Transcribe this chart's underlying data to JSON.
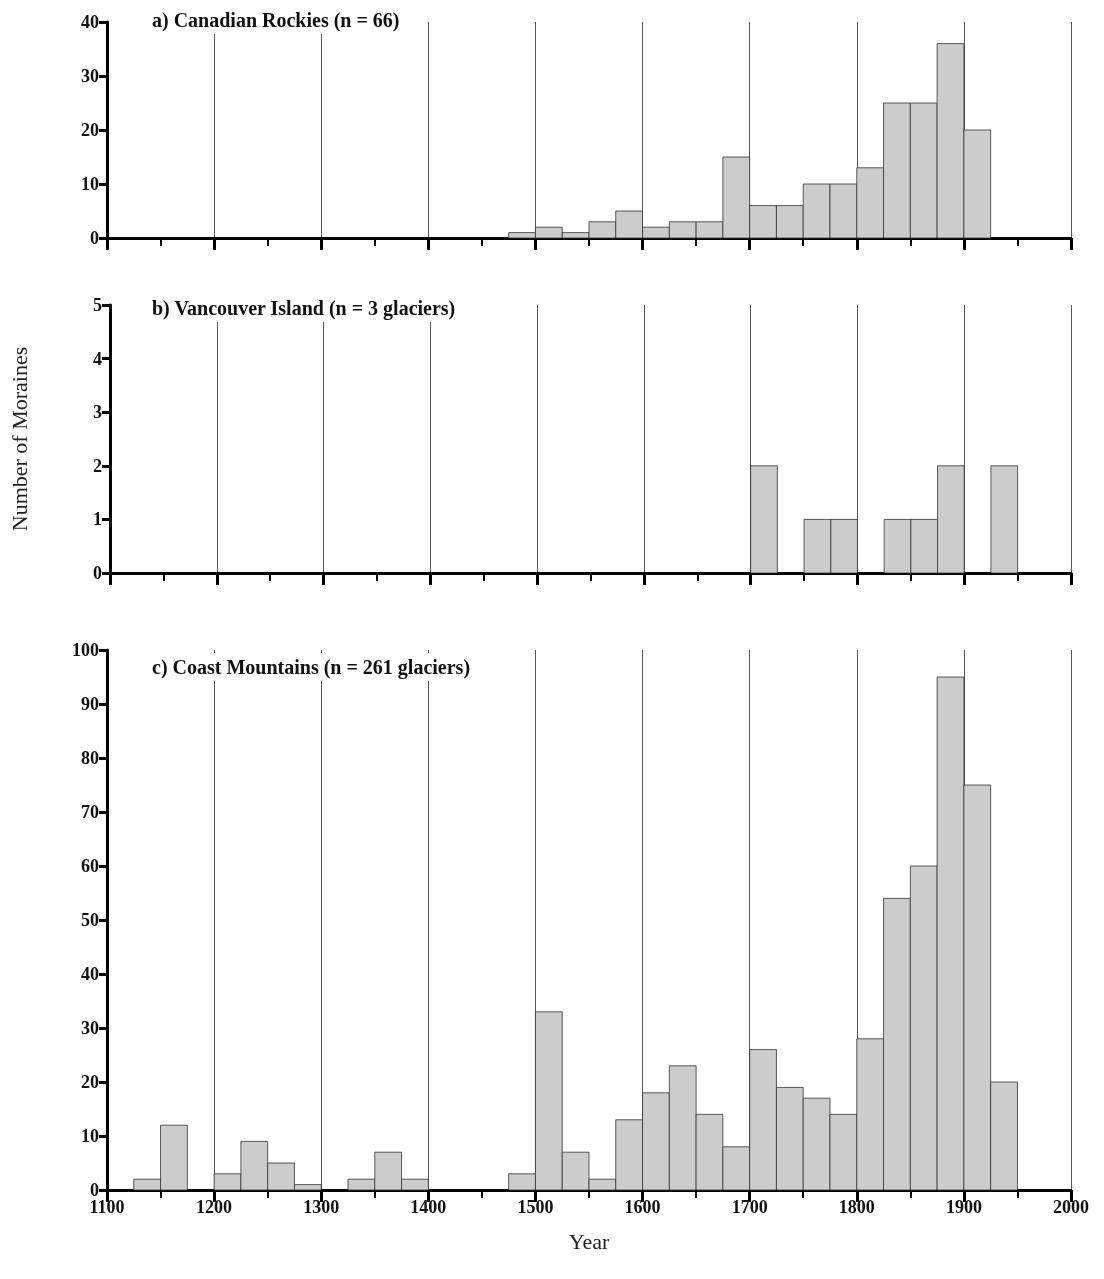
{
  "chart_data": [
    {
      "type": "histogram",
      "title": "a) Canadian Rockies (n = 66)",
      "bins": [
        1475,
        1500,
        1525,
        1550,
        1575,
        1600,
        1625,
        1650,
        1675,
        1700,
        1725,
        1750,
        1775,
        1800,
        1825,
        1850,
        1875,
        1900,
        1925
      ],
      "values": [
        1,
        2,
        1,
        3,
        5,
        2,
        3,
        3,
        15,
        6,
        6,
        10,
        10,
        13,
        25,
        25,
        36,
        20
      ],
      "color": "#cccccc",
      "xlim": [
        1100,
        2000
      ],
      "xticks": [
        1100,
        1200,
        1300,
        1400,
        1500,
        1600,
        1700,
        1800,
        1900,
        2000
      ],
      "ylim": [
        0,
        40
      ],
      "yticks": [
        0,
        10,
        20,
        30,
        40
      ],
      "grid": "x",
      "tick_labels": "y"
    },
    {
      "type": "histogram",
      "title": "b) Vancouver Island (n = 3 glaciers)",
      "ylabel": "Number of Moraines",
      "bins": [
        1700,
        1725,
        1750,
        1775,
        1800,
        1825,
        1850,
        1875,
        1900,
        1925,
        1950
      ],
      "values": [
        2,
        0,
        1,
        1,
        0,
        1,
        1,
        2,
        0,
        2
      ],
      "color": "#cccccc",
      "xlim": [
        1100,
        2000
      ],
      "xticks": [
        1100,
        1200,
        1300,
        1400,
        1500,
        1600,
        1700,
        1800,
        1900,
        2000
      ],
      "ylim": [
        0,
        5
      ],
      "yticks": [
        0,
        1,
        2,
        3,
        4,
        5
      ],
      "grid": "x",
      "tick_labels": "y"
    },
    {
      "type": "histogram",
      "title": "c) Coast Mountains (n = 261 glaciers)",
      "xlabel": "Year",
      "bins": [
        1125,
        1150,
        1175,
        1200,
        1225,
        1250,
        1275,
        1300,
        1325,
        1350,
        1375,
        1400,
        1425,
        1450,
        1475,
        1500,
        1525,
        1550,
        1575,
        1600,
        1625,
        1650,
        1675,
        1700,
        1725,
        1750,
        1775,
        1800,
        1825,
        1850,
        1875,
        1900,
        1925,
        1950
      ],
      "values": [
        2,
        12,
        0,
        3,
        9,
        5,
        1,
        0,
        2,
        7,
        2,
        0,
        0,
        0,
        3,
        33,
        7,
        2,
        13,
        18,
        23,
        14,
        8,
        26,
        19,
        17,
        14,
        28,
        54,
        60,
        95,
        75,
        20
      ],
      "color": "#cccccc",
      "xlim": [
        1100,
        2000
      ],
      "xticks": [
        1100,
        1200,
        1300,
        1400,
        1500,
        1600,
        1700,
        1800,
        1900,
        2000
      ],
      "ylim": [
        0,
        100
      ],
      "yticks": [
        0,
        10,
        20,
        30,
        40,
        50,
        60,
        70,
        80,
        90,
        100
      ],
      "grid": "x"
    }
  ]
}
